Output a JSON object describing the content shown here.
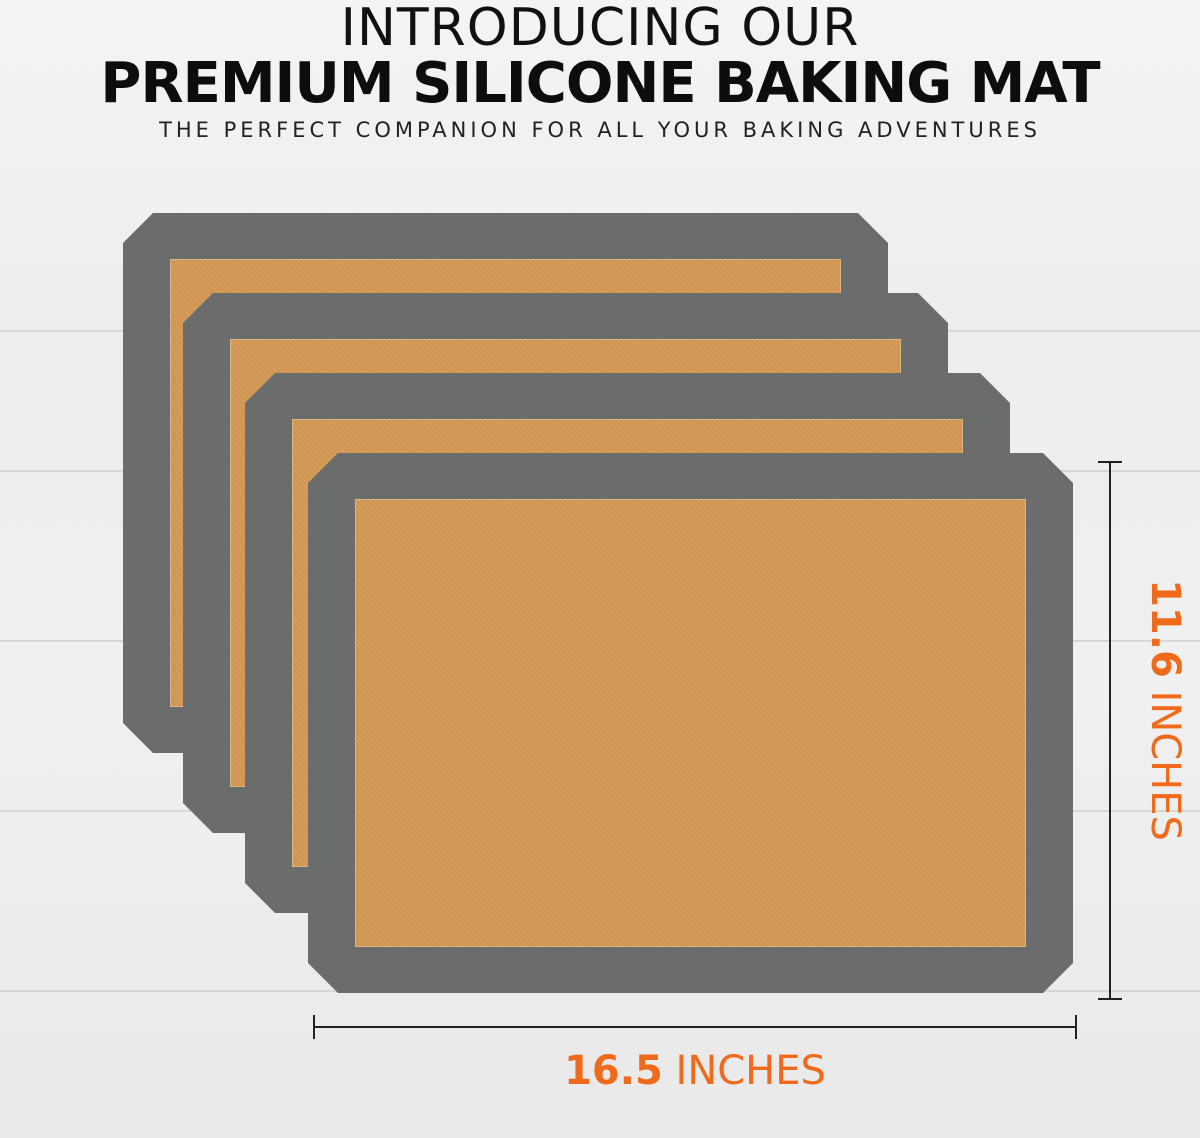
{
  "header": {
    "line1": "INTRODUCING OUR",
    "line2": "PREMIUM SILICONE BAKING MAT",
    "tagline": "THE PERFECT COMPANION FOR ALL YOUR BAKING ADVENTURES"
  },
  "dimensions": {
    "width_value": "16.5",
    "width_unit": "INCHES",
    "height_value": "11.6",
    "height_unit": "INCHES"
  },
  "mat_count": 4,
  "colors": {
    "accent": "#f06a1c",
    "mat_border": "#6a6d6c",
    "mat_center": "#e8c696"
  }
}
